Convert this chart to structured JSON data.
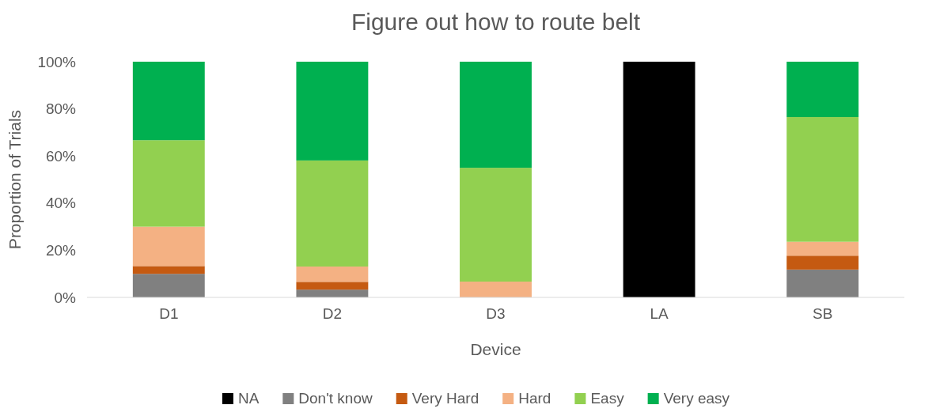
{
  "chart_data": {
    "type": "bar",
    "stacked": true,
    "title": "Figure out how to route belt",
    "xlabel": "Device",
    "ylabel": "Proportion of Trials",
    "categories": [
      "D1",
      "D2",
      "D3",
      "LA",
      "SB"
    ],
    "series": [
      {
        "name": "NA",
        "color": "#000000",
        "values": [
          0,
          0,
          0,
          100,
          0
        ]
      },
      {
        "name": "Don't know",
        "color": "#808080",
        "values": [
          10,
          3.3,
          0,
          0,
          11.8
        ]
      },
      {
        "name": "Very Hard",
        "color": "#c55a11",
        "values": [
          3.3,
          3.3,
          0,
          0,
          5.9
        ]
      },
      {
        "name": "Hard",
        "color": "#f4b183",
        "values": [
          16.7,
          6.5,
          6.7,
          0,
          5.9
        ]
      },
      {
        "name": "Easy",
        "color": "#92d050",
        "values": [
          36.7,
          45,
          48.3,
          0,
          52.9
        ]
      },
      {
        "name": "Very easy",
        "color": "#00b050",
        "values": [
          33.3,
          41.9,
          45,
          0,
          23.5
        ]
      }
    ],
    "ylim": [
      0,
      100
    ],
    "yticks": [
      {
        "value": 0,
        "label": "0%"
      },
      {
        "value": 20,
        "label": "20%"
      },
      {
        "value": 40,
        "label": "40%"
      },
      {
        "value": 60,
        "label": "60%"
      },
      {
        "value": 80,
        "label": "80%"
      },
      {
        "value": 100,
        "label": "100%"
      }
    ],
    "grid": false,
    "legend": "bottom"
  }
}
